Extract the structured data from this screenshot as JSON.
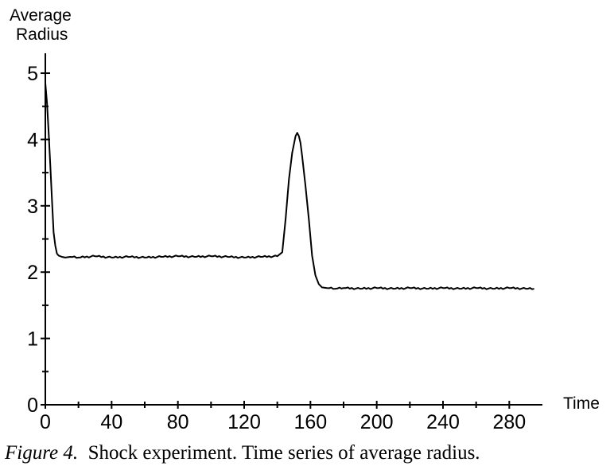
{
  "caption": {
    "label": "Figure 4.",
    "text": "Shock experiment. Time series of average radius."
  },
  "chart_data": {
    "type": "line",
    "title": "",
    "xlabel": "Time",
    "ylabel_line1": "Average",
    "ylabel_line2": "Radius",
    "xlim": [
      0,
      300
    ],
    "ylim": [
      0,
      5.3
    ],
    "x_ticks": [
      0,
      40,
      80,
      120,
      160,
      200,
      240,
      280
    ],
    "x_tick_labels": [
      "0",
      "40",
      "80",
      "120",
      "160",
      "200",
      "240",
      "280"
    ],
    "y_ticks": [
      0,
      1,
      2,
      3,
      4,
      5
    ],
    "y_tick_labels": [
      "0",
      "1",
      "2",
      "3",
      "4",
      "5"
    ],
    "grid": false,
    "series": [
      {
        "color": "#000000",
        "x": [
          0,
          1,
          2,
          3,
          4,
          5,
          6,
          7,
          8,
          9,
          10,
          12,
          15,
          20,
          30,
          40,
          50,
          60,
          70,
          80,
          90,
          100,
          110,
          120,
          130,
          140,
          143,
          145,
          147,
          149,
          151,
          152,
          153,
          154,
          155,
          157,
          159,
          161,
          163,
          165,
          167,
          170,
          175,
          180,
          190,
          200,
          210,
          220,
          230,
          240,
          250,
          260,
          270,
          280,
          290,
          295
        ],
        "y": [
          4.85,
          4.55,
          4.1,
          3.6,
          3.1,
          2.6,
          2.4,
          2.28,
          2.25,
          2.24,
          2.23,
          2.22,
          2.23,
          2.22,
          2.24,
          2.22,
          2.23,
          2.22,
          2.23,
          2.24,
          2.23,
          2.24,
          2.23,
          2.22,
          2.23,
          2.24,
          2.3,
          2.8,
          3.4,
          3.8,
          4.05,
          4.1,
          4.05,
          3.95,
          3.75,
          3.3,
          2.8,
          2.25,
          1.95,
          1.82,
          1.77,
          1.76,
          1.75,
          1.76,
          1.75,
          1.76,
          1.75,
          1.76,
          1.75,
          1.76,
          1.75,
          1.76,
          1.75,
          1.76,
          1.75,
          1.75
        ]
      }
    ]
  }
}
